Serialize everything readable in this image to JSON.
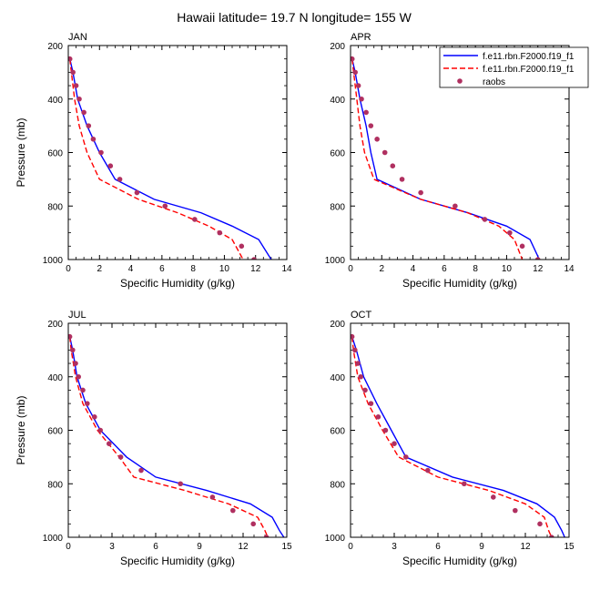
{
  "title": "Hawaii  latitude= 19.7 N longitude= 155 W",
  "legend": {
    "placement": "top-right of APR panel",
    "entries": [
      {
        "label": "f.e11.rbn.F2000.f19_f1",
        "color": "#0000ff",
        "style": "solid"
      },
      {
        "label": "f.e11.rbn.F2000.f19_f1",
        "color": "#ff0000",
        "style": "dashed"
      },
      {
        "label": "raobs",
        "color": "#b03060",
        "style": "marker"
      }
    ]
  },
  "chart_data": [
    {
      "type": "line",
      "panel": "JAN",
      "xlabel": "Specific Humidity (g/kg)",
      "ylabel": "Pressure (mb)",
      "xlim": [
        0,
        14
      ],
      "xticks": [
        0,
        2,
        4,
        6,
        8,
        10,
        12,
        14
      ],
      "ylim": [
        200,
        1000
      ],
      "yticks": [
        200,
        400,
        600,
        800,
        1000
      ],
      "y_inverted": true,
      "series": [
        {
          "color": "#0000ff",
          "style": "solid",
          "points": [
            [
              0.1,
              250
            ],
            [
              0.3,
              300
            ],
            [
              0.6,
              400
            ],
            [
              1.2,
              500
            ],
            [
              2.0,
              600
            ],
            [
              3.0,
              700
            ],
            [
              5.5,
              775
            ],
            [
              8.5,
              825
            ],
            [
              10.5,
              875
            ],
            [
              12.2,
              925
            ],
            [
              13.0,
              1000
            ]
          ]
        },
        {
          "color": "#ff0000",
          "style": "dashed",
          "points": [
            [
              0.1,
              250
            ],
            [
              0.2,
              300
            ],
            [
              0.4,
              400
            ],
            [
              0.7,
              500
            ],
            [
              1.2,
              600
            ],
            [
              2.0,
              700
            ],
            [
              4.5,
              775
            ],
            [
              7.0,
              825
            ],
            [
              9.0,
              875
            ],
            [
              10.5,
              925
            ],
            [
              11.2,
              1000
            ]
          ]
        },
        {
          "color": "#b03060",
          "style": "marker",
          "points": [
            [
              0.1,
              250
            ],
            [
              0.3,
              300
            ],
            [
              0.5,
              350
            ],
            [
              0.7,
              400
            ],
            [
              1.0,
              450
            ],
            [
              1.3,
              500
            ],
            [
              1.6,
              550
            ],
            [
              2.1,
              600
            ],
            [
              2.7,
              650
            ],
            [
              3.3,
              700
            ],
            [
              4.4,
              750
            ],
            [
              6.2,
              800
            ],
            [
              8.1,
              850
            ],
            [
              9.7,
              900
            ],
            [
              11.1,
              950
            ],
            [
              11.9,
              1000
            ]
          ]
        }
      ]
    },
    {
      "type": "line",
      "panel": "APR",
      "xlabel": "Specific Humidity (g/kg)",
      "ylabel": "",
      "xlim": [
        0,
        14
      ],
      "xticks": [
        0,
        2,
        4,
        6,
        8,
        10,
        12,
        14
      ],
      "ylim": [
        200,
        1000
      ],
      "yticks": [
        200,
        400,
        600,
        800,
        1000
      ],
      "y_inverted": true,
      "series": [
        {
          "color": "#0000ff",
          "style": "solid",
          "points": [
            [
              0.1,
              250
            ],
            [
              0.3,
              300
            ],
            [
              0.6,
              400
            ],
            [
              1.0,
              500
            ],
            [
              1.3,
              600
            ],
            [
              1.7,
              700
            ],
            [
              4.5,
              775
            ],
            [
              7.5,
              825
            ],
            [
              10.0,
              875
            ],
            [
              11.5,
              925
            ],
            [
              12.1,
              1000
            ]
          ]
        },
        {
          "color": "#ff0000",
          "style": "dashed",
          "points": [
            [
              0.1,
              250
            ],
            [
              0.2,
              300
            ],
            [
              0.4,
              400
            ],
            [
              0.6,
              500
            ],
            [
              0.9,
              600
            ],
            [
              1.5,
              700
            ],
            [
              4.5,
              775
            ],
            [
              7.5,
              825
            ],
            [
              9.5,
              875
            ],
            [
              10.5,
              925
            ],
            [
              11.0,
              1000
            ]
          ]
        },
        {
          "color": "#b03060",
          "style": "marker",
          "points": [
            [
              0.1,
              250
            ],
            [
              0.3,
              300
            ],
            [
              0.5,
              350
            ],
            [
              0.7,
              400
            ],
            [
              1.0,
              450
            ],
            [
              1.3,
              500
            ],
            [
              1.7,
              550
            ],
            [
              2.2,
              600
            ],
            [
              2.7,
              650
            ],
            [
              3.3,
              700
            ],
            [
              4.5,
              750
            ],
            [
              6.7,
              800
            ],
            [
              8.6,
              850
            ],
            [
              10.2,
              900
            ],
            [
              11.0,
              950
            ],
            [
              12.0,
              1000
            ]
          ]
        }
      ]
    },
    {
      "type": "line",
      "panel": "JUL",
      "xlabel": "Specific Humidity (g/kg)",
      "ylabel": "Pressure (mb)",
      "xlim": [
        0,
        15
      ],
      "xticks": [
        0,
        3,
        6,
        9,
        12,
        15
      ],
      "ylim": [
        200,
        1000
      ],
      "yticks": [
        200,
        400,
        600,
        800,
        1000
      ],
      "y_inverted": true,
      "series": [
        {
          "color": "#0000ff",
          "style": "solid",
          "points": [
            [
              0.1,
              250
            ],
            [
              0.3,
              300
            ],
            [
              0.6,
              400
            ],
            [
              1.2,
              500
            ],
            [
              2.2,
              600
            ],
            [
              4.0,
              700
            ],
            [
              6.0,
              775
            ],
            [
              9.5,
              825
            ],
            [
              12.5,
              875
            ],
            [
              14.0,
              925
            ],
            [
              14.5,
              975
            ],
            [
              14.8,
              1000
            ]
          ]
        },
        {
          "color": "#ff0000",
          "style": "dashed",
          "points": [
            [
              0.1,
              250
            ],
            [
              0.2,
              300
            ],
            [
              0.5,
              400
            ],
            [
              1.0,
              500
            ],
            [
              2.0,
              600
            ],
            [
              3.5,
              700
            ],
            [
              4.5,
              775
            ],
            [
              8.0,
              825
            ],
            [
              11.0,
              875
            ],
            [
              13.0,
              925
            ],
            [
              13.5,
              975
            ],
            [
              13.7,
              1000
            ]
          ]
        },
        {
          "color": "#b03060",
          "style": "marker",
          "points": [
            [
              0.1,
              250
            ],
            [
              0.3,
              300
            ],
            [
              0.5,
              350
            ],
            [
              0.7,
              400
            ],
            [
              1.0,
              450
            ],
            [
              1.3,
              500
            ],
            [
              1.8,
              550
            ],
            [
              2.2,
              600
            ],
            [
              2.8,
              650
            ],
            [
              3.6,
              700
            ],
            [
              5.0,
              750
            ],
            [
              7.7,
              800
            ],
            [
              9.9,
              850
            ],
            [
              11.3,
              900
            ],
            [
              12.7,
              950
            ],
            [
              13.6,
              1000
            ]
          ]
        }
      ]
    },
    {
      "type": "line",
      "panel": "OCT",
      "xlabel": "Specific Humidity (g/kg)",
      "ylabel": "",
      "xlim": [
        0,
        15
      ],
      "xticks": [
        0,
        3,
        6,
        9,
        12,
        15
      ],
      "ylim": [
        200,
        1000
      ],
      "yticks": [
        200,
        400,
        600,
        800,
        1000
      ],
      "y_inverted": true,
      "series": [
        {
          "color": "#0000ff",
          "style": "solid",
          "points": [
            [
              0.1,
              250
            ],
            [
              0.4,
              300
            ],
            [
              0.9,
              400
            ],
            [
              1.8,
              500
            ],
            [
              2.8,
              600
            ],
            [
              3.8,
              700
            ],
            [
              7.0,
              775
            ],
            [
              10.5,
              825
            ],
            [
              12.8,
              875
            ],
            [
              14.0,
              925
            ],
            [
              14.5,
              975
            ],
            [
              14.7,
              1000
            ]
          ]
        },
        {
          "color": "#ff0000",
          "style": "dashed",
          "points": [
            [
              0.1,
              250
            ],
            [
              0.2,
              300
            ],
            [
              0.5,
              400
            ],
            [
              1.2,
              500
            ],
            [
              2.2,
              600
            ],
            [
              3.3,
              700
            ],
            [
              6.0,
              775
            ],
            [
              9.5,
              825
            ],
            [
              12.0,
              875
            ],
            [
              13.3,
              925
            ],
            [
              13.6,
              975
            ],
            [
              13.8,
              1000
            ]
          ]
        },
        {
          "color": "#b03060",
          "style": "marker",
          "points": [
            [
              0.1,
              250
            ],
            [
              0.3,
              300
            ],
            [
              0.5,
              350
            ],
            [
              0.7,
              400
            ],
            [
              1.0,
              450
            ],
            [
              1.4,
              500
            ],
            [
              1.9,
              550
            ],
            [
              2.4,
              600
            ],
            [
              3.0,
              650
            ],
            [
              3.8,
              700
            ],
            [
              5.3,
              750
            ],
            [
              7.8,
              800
            ],
            [
              9.8,
              850
            ],
            [
              11.3,
              900
            ],
            [
              13.0,
              950
            ],
            [
              13.8,
              1000
            ]
          ]
        }
      ]
    }
  ]
}
